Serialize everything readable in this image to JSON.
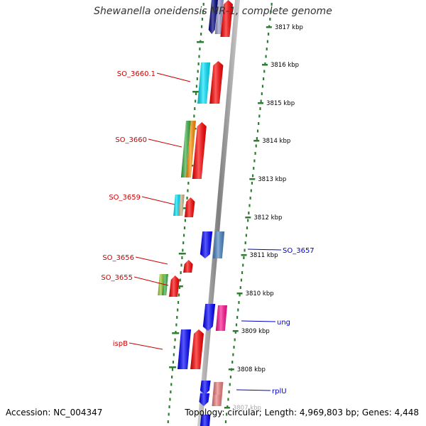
{
  "title": "Shewanella oneidensis MR-1, complete genome",
  "accession": "Accession: NC_004347",
  "topology": "Topology: circular; Length: 4,969,803 bp; Genes: 4,448",
  "colors": {
    "backbone": "#8c8c8c",
    "tick": "#2e7d32",
    "left_label": "#cc0000",
    "right_label": "#0000cc",
    "kbp_text": "#000000"
  },
  "kbp_ticks": [
    {
      "label": "3817 kbp"
    },
    {
      "label": "3816 kbp"
    },
    {
      "label": "3815 kbp"
    },
    {
      "label": "3814 kbp"
    },
    {
      "label": "3813 kbp"
    },
    {
      "label": "3812 kbp"
    },
    {
      "label": "3811 kbp"
    },
    {
      "label": "3810 kbp"
    },
    {
      "label": "3809 kbp"
    },
    {
      "label": "3808 kbp"
    },
    {
      "label": "3807 kbp"
    }
  ],
  "left_genes": [
    {
      "label": "SO_3660.1"
    },
    {
      "label": "SO_3660"
    },
    {
      "label": "SO_3659"
    },
    {
      "label": "SO_3656"
    },
    {
      "label": "SO_3655"
    },
    {
      "label": "ispB"
    }
  ],
  "right_genes": [
    {
      "label": "SO_3657"
    },
    {
      "label": "ung"
    },
    {
      "label": "rplU"
    }
  ],
  "feature_colors": {
    "red": "#ff0000",
    "cyan": "#00e5ff",
    "blue": "#0000ff",
    "steel": "#4a86c5",
    "magenta": "#ff1493",
    "pink": "#f08080",
    "green": "#3cb043",
    "orange": "#ff8c00",
    "lime": "#9acd32",
    "tan": "#c8b88a",
    "navy": "#000080",
    "lavender": "#9999cc"
  }
}
